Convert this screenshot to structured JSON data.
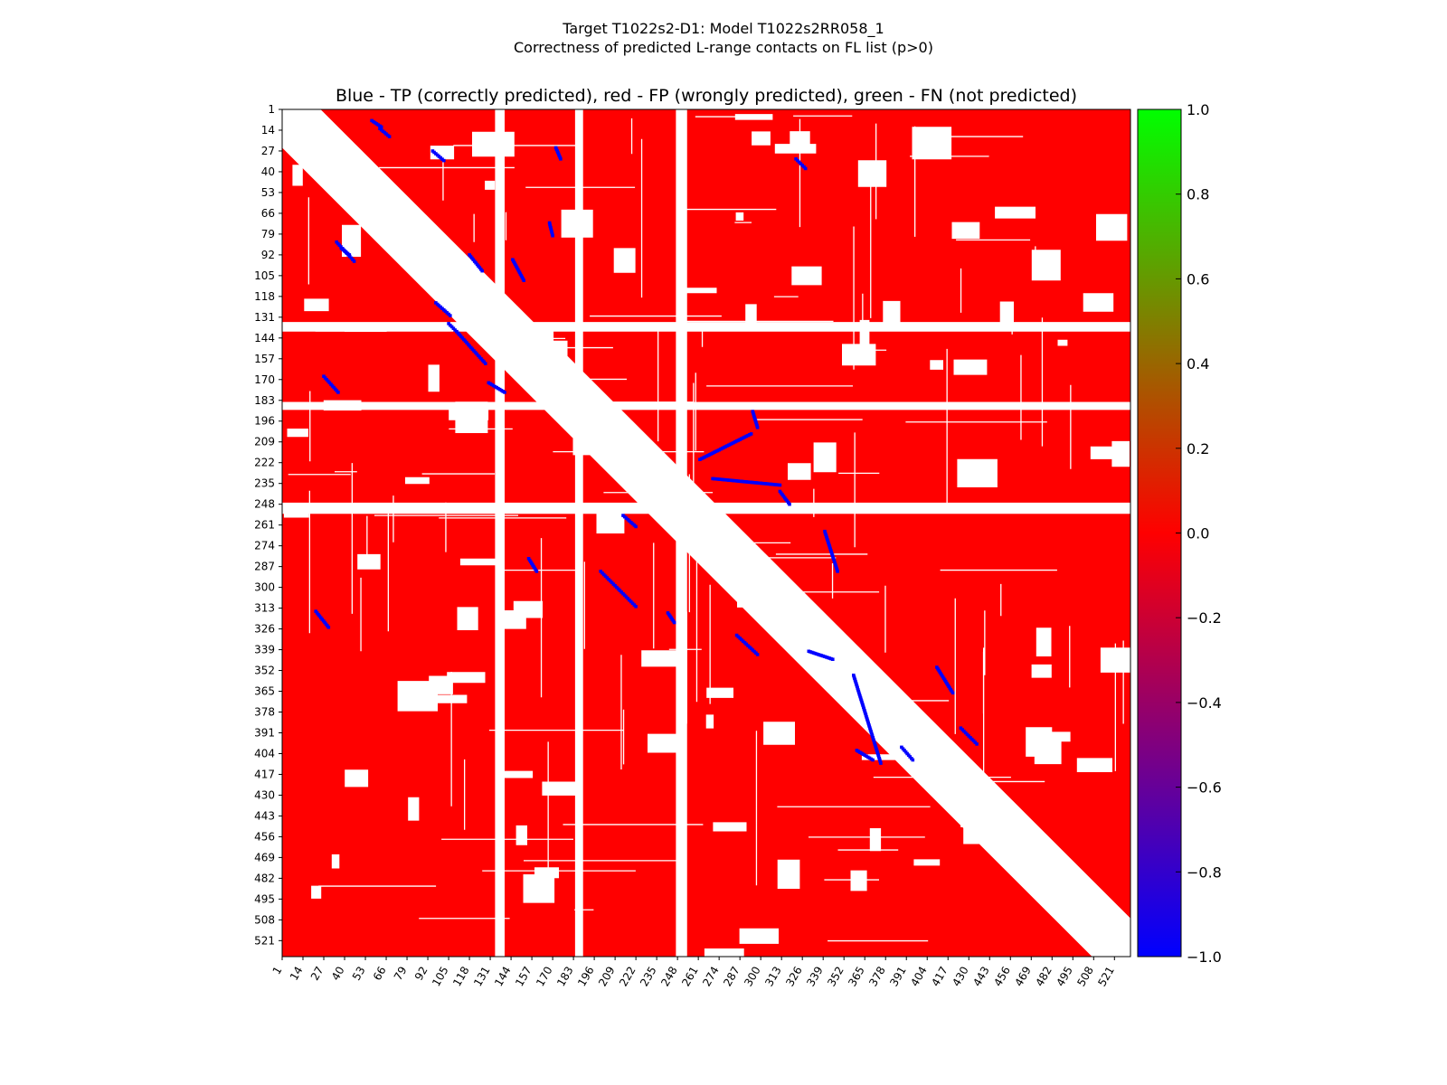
{
  "suptitle_line1": "Target T1022s2-D1: Model T1022s2RR058_1",
  "suptitle_line2": "Correctness of predicted L-range contacts on FL list (p>0)",
  "colors": {
    "tp": "#0000ff",
    "fp": "#ff0000",
    "fn": "#00ff00",
    "empty": "#ffffff"
  },
  "chart_data": {
    "type": "heatmap",
    "title": "Blue - TP (correctly predicted), red - FP (wrongly predicted), green - FN (not predicted)",
    "xlabel": "",
    "ylabel": "",
    "residue_range": [
      1,
      530
    ],
    "x_ticks": [
      1,
      14,
      27,
      40,
      53,
      66,
      79,
      92,
      105,
      118,
      131,
      144,
      157,
      170,
      183,
      196,
      209,
      222,
      235,
      248,
      261,
      274,
      287,
      300,
      313,
      326,
      339,
      352,
      365,
      378,
      391,
      404,
      417,
      430,
      443,
      456,
      469,
      482,
      495,
      508,
      521
    ],
    "y_ticks": [
      1,
      14,
      27,
      40,
      53,
      66,
      79,
      92,
      105,
      118,
      131,
      144,
      157,
      170,
      183,
      196,
      209,
      222,
      235,
      248,
      261,
      274,
      287,
      300,
      313,
      326,
      339,
      352,
      365,
      378,
      391,
      404,
      417,
      430,
      443,
      456,
      469,
      482,
      495,
      508,
      521
    ],
    "excluded_diagonal_band": 24,
    "empty_stripes": [
      [
        134,
        140
      ],
      [
        184,
        189
      ],
      [
        247,
        254
      ]
    ],
    "colorbar": {
      "range": [
        -1.0,
        1.0
      ],
      "ticks": [
        "1.0",
        "0.8",
        "0.6",
        "0.4",
        "0.2",
        "0.0",
        "−0.2",
        "−0.4",
        "−0.6",
        "−0.8",
        "−1.0"
      ],
      "colors": [
        "#0000ff",
        "#ff0000",
        "#00ff00"
      ]
    },
    "tp_segments": [
      [
        57,
        8,
        63,
        12
      ],
      [
        62,
        13,
        68,
        18
      ],
      [
        95,
        27,
        102,
        33
      ],
      [
        35,
        84,
        46,
        96
      ],
      [
        38,
        88,
        43,
        92
      ],
      [
        110,
        140,
        128,
        160
      ],
      [
        105,
        135,
        112,
        142
      ],
      [
        145,
        95,
        152,
        108
      ],
      [
        168,
        72,
        170,
        80
      ],
      [
        172,
        25,
        175,
        32
      ],
      [
        200,
        290,
        222,
        312
      ],
      [
        214,
        255,
        222,
        262
      ],
      [
        242,
        316,
        246,
        322
      ],
      [
        262,
        220,
        294,
        204
      ],
      [
        270,
        232,
        312,
        236
      ],
      [
        295,
        190,
        298,
        200
      ],
      [
        312,
        240,
        318,
        248
      ],
      [
        322,
        32,
        328,
        38
      ],
      [
        340,
        265,
        348,
        290
      ],
      [
        358,
        355,
        375,
        410
      ],
      [
        330,
        340,
        345,
        345
      ],
      [
        388,
        400,
        395,
        408
      ],
      [
        410,
        350,
        420,
        366
      ],
      [
        425,
        388,
        435,
        398
      ],
      [
        22,
        315,
        30,
        325
      ],
      [
        27,
        168,
        36,
        178
      ],
      [
        130,
        172,
        140,
        178
      ],
      [
        118,
        92,
        126,
        102
      ],
      [
        97,
        122,
        106,
        130
      ],
      [
        285,
        330,
        298,
        342
      ],
      [
        155,
        282,
        160,
        290
      ],
      [
        360,
        402,
        370,
        408
      ]
    ]
  }
}
